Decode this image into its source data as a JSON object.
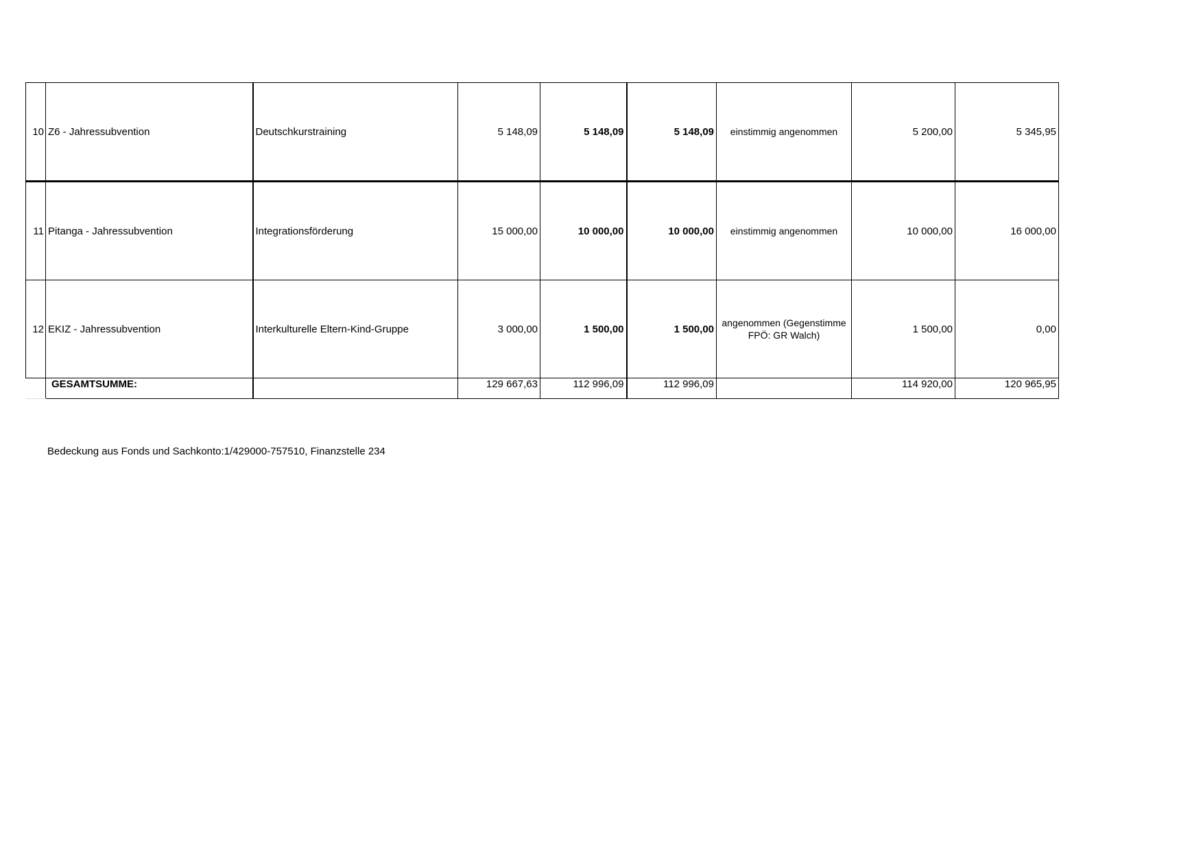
{
  "rows": [
    {
      "nr": "10",
      "name": "Z6 - Jahressubvention",
      "purpose": "Deutschkurstraining",
      "requested": "5 148,09",
      "proposed": "5 148,09",
      "approved": "5 148,09",
      "decision": "einstimmig angenommen",
      "prev1": "5 200,00",
      "prev2": "5 345,95"
    },
    {
      "nr": "11",
      "name": "Pitanga - Jahressubvention",
      "purpose": "Integrationsförderung",
      "requested": "15 000,00",
      "proposed": "10 000,00",
      "approved": "10 000,00",
      "decision": "einstimmig angenommen",
      "prev1": "10 000,00",
      "prev2": "16 000,00"
    },
    {
      "nr": "12",
      "name": "EKIZ - Jahressubvention",
      "purpose": "Interkulturelle Eltern-Kind-Gruppe",
      "requested": "3 000,00",
      "proposed": "1 500,00",
      "approved": "1 500,00",
      "decision": "angenommen (Gegenstimme FPÖ: GR Walch)",
      "prev1": "1 500,00",
      "prev2": "0,00"
    }
  ],
  "total": {
    "label": "GESAMTSUMME:",
    "requested": "129 667,63",
    "proposed": "112 996,09",
    "approved": "112 996,09",
    "prev1": "114 920,00",
    "prev2": "120 965,95"
  },
  "footer": "Bedeckung aus Fonds und Sachkonto:1/429000-757510, Finanzstelle 234"
}
